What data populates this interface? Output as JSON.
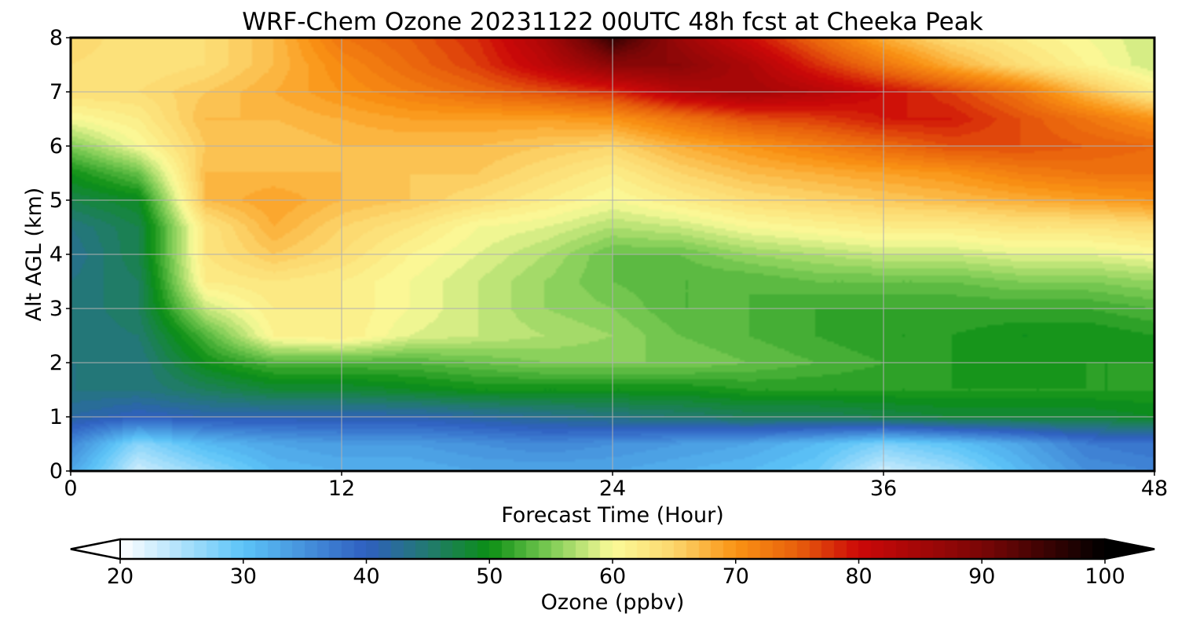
{
  "chart_data": {
    "type": "heatmap",
    "title": "WRF-Chem Ozone  20231122 00UTC 48h fcst at Cheeka Peak",
    "xlabel": "Forecast Time (Hour)",
    "ylabel": "Alt AGL (km)",
    "xlim": [
      0,
      48
    ],
    "ylim": [
      0,
      8
    ],
    "xticks": [
      0,
      12,
      24,
      36,
      48
    ],
    "yticks": [
      0,
      1,
      2,
      3,
      4,
      5,
      6,
      7,
      8
    ],
    "grid": true,
    "x": [
      0,
      3,
      6,
      9,
      12,
      15,
      18,
      21,
      24,
      27,
      30,
      33,
      36,
      39,
      42,
      45,
      48
    ],
    "y": [
      0,
      0.5,
      1,
      1.5,
      2,
      2.5,
      3,
      3.5,
      4,
      4.5,
      5,
      5.5,
      6,
      6.5,
      7,
      7.5,
      8
    ],
    "z": [
      [
        33,
        23,
        27,
        31,
        32,
        32,
        33,
        33,
        33,
        32,
        31,
        29,
        23,
        26,
        31,
        35,
        36
      ],
      [
        36,
        27,
        31,
        33,
        34,
        34,
        35,
        36,
        35,
        34,
        33,
        31,
        28,
        30,
        33,
        37,
        38
      ],
      [
        42,
        40,
        41,
        41,
        41,
        41,
        42,
        43,
        44,
        45,
        46,
        46,
        47,
        48,
        48,
        48,
        49
      ],
      [
        44,
        44,
        46,
        48,
        48,
        49,
        50,
        50,
        50,
        50,
        51,
        51,
        51,
        51,
        51,
        51,
        51
      ],
      [
        44,
        44,
        50,
        53,
        53,
        53,
        54,
        55,
        55,
        55,
        54,
        53,
        52,
        51,
        50,
        51,
        51
      ],
      [
        44,
        45,
        53,
        61,
        62,
        59,
        58,
        57,
        56,
        54,
        53,
        52,
        51,
        51,
        50,
        50,
        51
      ],
      [
        44,
        46,
        58,
        62,
        62,
        60,
        58,
        56,
        55,
        53,
        53,
        52,
        52,
        52,
        52,
        52,
        53
      ],
      [
        44,
        46,
        62,
        63,
        62,
        60,
        58,
        56,
        54,
        53,
        53,
        54,
        54,
        54,
        55,
        55,
        56
      ],
      [
        43,
        47,
        63,
        66,
        64,
        61,
        59,
        57,
        54,
        54,
        56,
        57,
        58,
        58,
        59,
        59,
        60
      ],
      [
        44,
        47,
        63,
        68,
        65,
        63,
        60,
        59,
        57,
        58,
        60,
        61,
        62,
        62,
        63,
        63,
        64
      ],
      [
        47,
        49,
        67,
        69,
        67,
        66,
        64,
        62,
        60,
        62,
        64,
        65,
        66,
        67,
        68,
        69,
        70
      ],
      [
        50,
        54,
        67,
        67,
        67,
        66,
        66,
        64,
        62,
        65,
        67,
        68,
        69,
        70,
        72,
        73,
        73
      ],
      [
        55,
        60,
        66,
        66,
        67,
        67,
        67,
        66,
        65,
        68,
        70,
        72,
        74,
        76,
        76,
        75,
        74
      ],
      [
        60,
        62,
        67,
        67,
        68,
        69,
        69,
        69,
        70,
        73,
        76,
        77,
        79,
        79,
        76,
        73,
        70
      ],
      [
        64,
        64,
        66,
        68,
        70,
        72,
        74,
        76,
        78,
        83,
        85,
        83,
        80,
        77,
        73,
        67,
        62
      ],
      [
        64,
        63,
        64,
        67,
        71,
        74,
        77,
        82,
        88,
        88,
        84,
        78,
        73,
        68,
        64,
        61,
        58
      ],
      [
        65,
        63,
        64,
        67,
        73,
        75,
        78,
        84,
        96,
        86,
        80,
        74,
        68,
        64,
        62,
        60,
        58
      ]
    ],
    "colorbar": {
      "label": "Ozone  (ppbv)",
      "min": 20,
      "max": 100,
      "ticks": [
        20,
        30,
        40,
        50,
        60,
        70,
        80,
        90,
        100
      ],
      "extend": "both",
      "stops": [
        {
          "value": 20,
          "color": "#ffffff"
        },
        {
          "value": 30,
          "color": "#5cc4f8"
        },
        {
          "value": 40,
          "color": "#2f5fc0"
        },
        {
          "value": 45,
          "color": "#227a70"
        },
        {
          "value": 50,
          "color": "#0b8f14"
        },
        {
          "value": 55,
          "color": "#7fcc55"
        },
        {
          "value": 60,
          "color": "#fbfb99"
        },
        {
          "value": 65,
          "color": "#fcd66c"
        },
        {
          "value": 70,
          "color": "#fa9314"
        },
        {
          "value": 75,
          "color": "#e8600c"
        },
        {
          "value": 80,
          "color": "#cc0808"
        },
        {
          "value": 90,
          "color": "#7a0606"
        },
        {
          "value": 100,
          "color": "#000000"
        }
      ]
    }
  }
}
